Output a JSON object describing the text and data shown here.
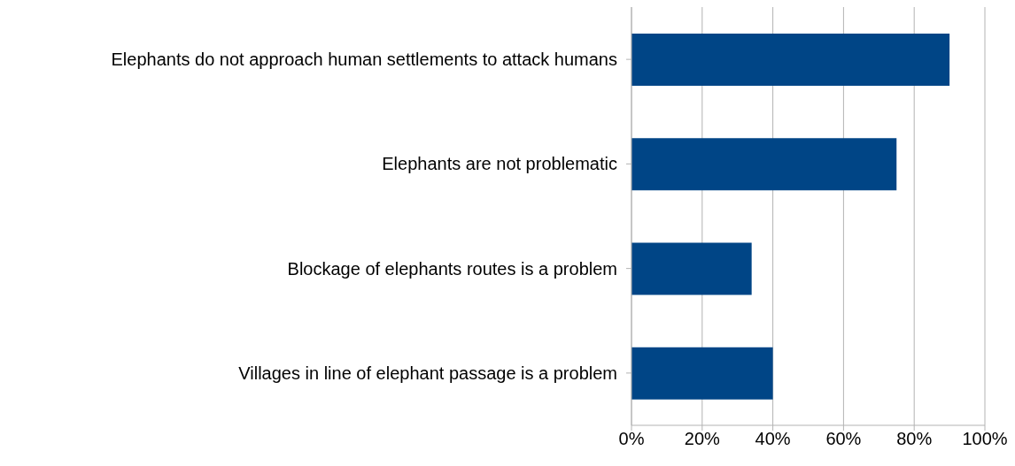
{
  "chart_data": {
    "type": "bar",
    "orientation": "horizontal",
    "categories": [
      "Elephants do not approach human settlements to attack humans",
      "Elephants are not problematic",
      "Blockage of elephants routes is a problem",
      "Villages in line of elephant passage is a problem"
    ],
    "values": [
      90,
      75,
      34,
      40
    ],
    "color": "#004586",
    "xlim": [
      0,
      100
    ],
    "xticks": [
      {
        "value": 0,
        "label": "0%"
      },
      {
        "value": 20,
        "label": "20%"
      },
      {
        "value": 40,
        "label": "40%"
      },
      {
        "value": 60,
        "label": "60%"
      },
      {
        "value": 80,
        "label": "80%"
      },
      {
        "value": 100,
        "label": "100%"
      }
    ],
    "grid": "x",
    "legend": false
  }
}
